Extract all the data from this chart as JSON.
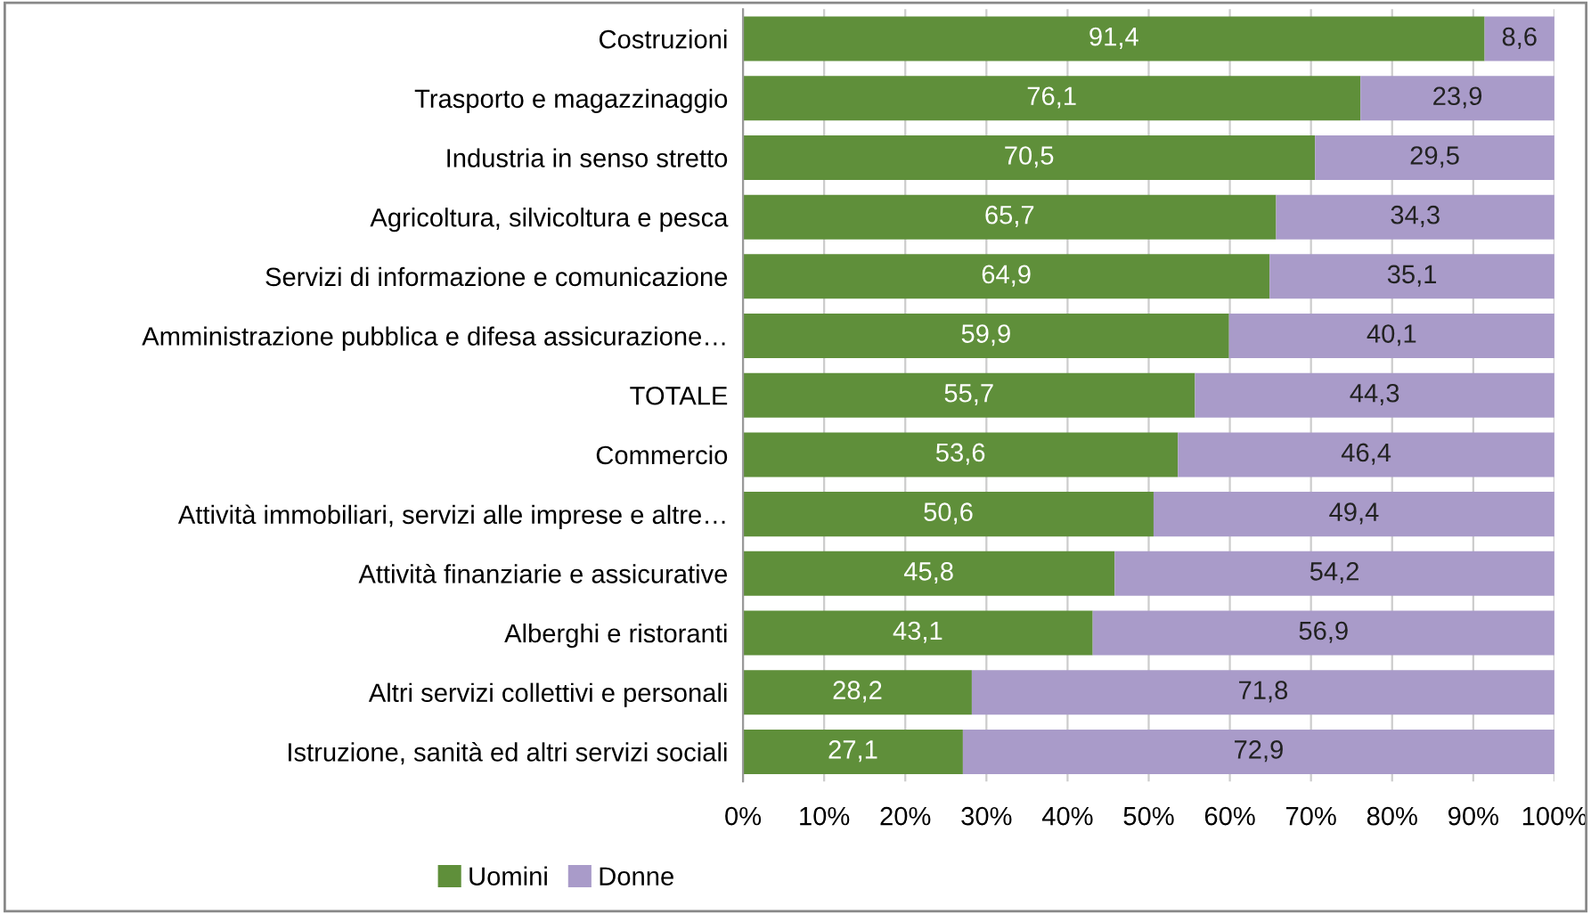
{
  "chart_data": {
    "type": "bar",
    "orientation": "horizontal",
    "stacked": true,
    "categories": [
      "Costruzioni",
      "Trasporto e magazzinaggio",
      "Industria in senso stretto",
      "Agricoltura, silvicoltura e pesca",
      "Servizi di informazione e comunicazione",
      "Amministrazione pubblica e difesa assicurazione…",
      "TOTALE",
      "Commercio",
      "Attività immobiliari, servizi alle imprese e altre…",
      "Attività finanziarie e assicurative",
      "Alberghi e ristoranti",
      "Altri servizi collettivi e personali",
      "Istruzione, sanità ed altri servizi sociali"
    ],
    "series": [
      {
        "name": "Uomini",
        "color": "#5f8f3a",
        "values": [
          91.4,
          76.1,
          70.5,
          65.7,
          64.9,
          59.9,
          55.7,
          53.6,
          50.6,
          45.8,
          43.1,
          28.2,
          27.1
        ],
        "value_labels": [
          "91,4",
          "76,1",
          "70,5",
          "65,7",
          "64,9",
          "59,9",
          "55,7",
          "53,6",
          "50,6",
          "45,8",
          "43,1",
          "28,2",
          "27,1"
        ]
      },
      {
        "name": "Donne",
        "color": "#a99bc9",
        "values": [
          8.6,
          23.9,
          29.5,
          34.3,
          35.1,
          40.1,
          44.3,
          46.4,
          49.4,
          54.2,
          56.9,
          71.8,
          72.9
        ],
        "value_labels": [
          "8,6",
          "23,9",
          "29,5",
          "34,3",
          "35,1",
          "40,1",
          "44,3",
          "46,4",
          "49,4",
          "54,2",
          "56,9",
          "71,8",
          "72,9"
        ]
      }
    ],
    "xlim": [
      0,
      100
    ],
    "xticks": [
      {
        "value": 0,
        "label": "0%"
      },
      {
        "value": 10,
        "label": "10%"
      },
      {
        "value": 20,
        "label": "20%"
      },
      {
        "value": 30,
        "label": "30%"
      },
      {
        "value": 40,
        "label": "40%"
      },
      {
        "value": 50,
        "label": "50%"
      },
      {
        "value": 60,
        "label": "60%"
      },
      {
        "value": 70,
        "label": "70%"
      },
      {
        "value": 80,
        "label": "80%"
      },
      {
        "value": 90,
        "label": "90%"
      },
      {
        "value": 100,
        "label": "100%"
      }
    ],
    "grid": "x",
    "legend": "bottom"
  }
}
